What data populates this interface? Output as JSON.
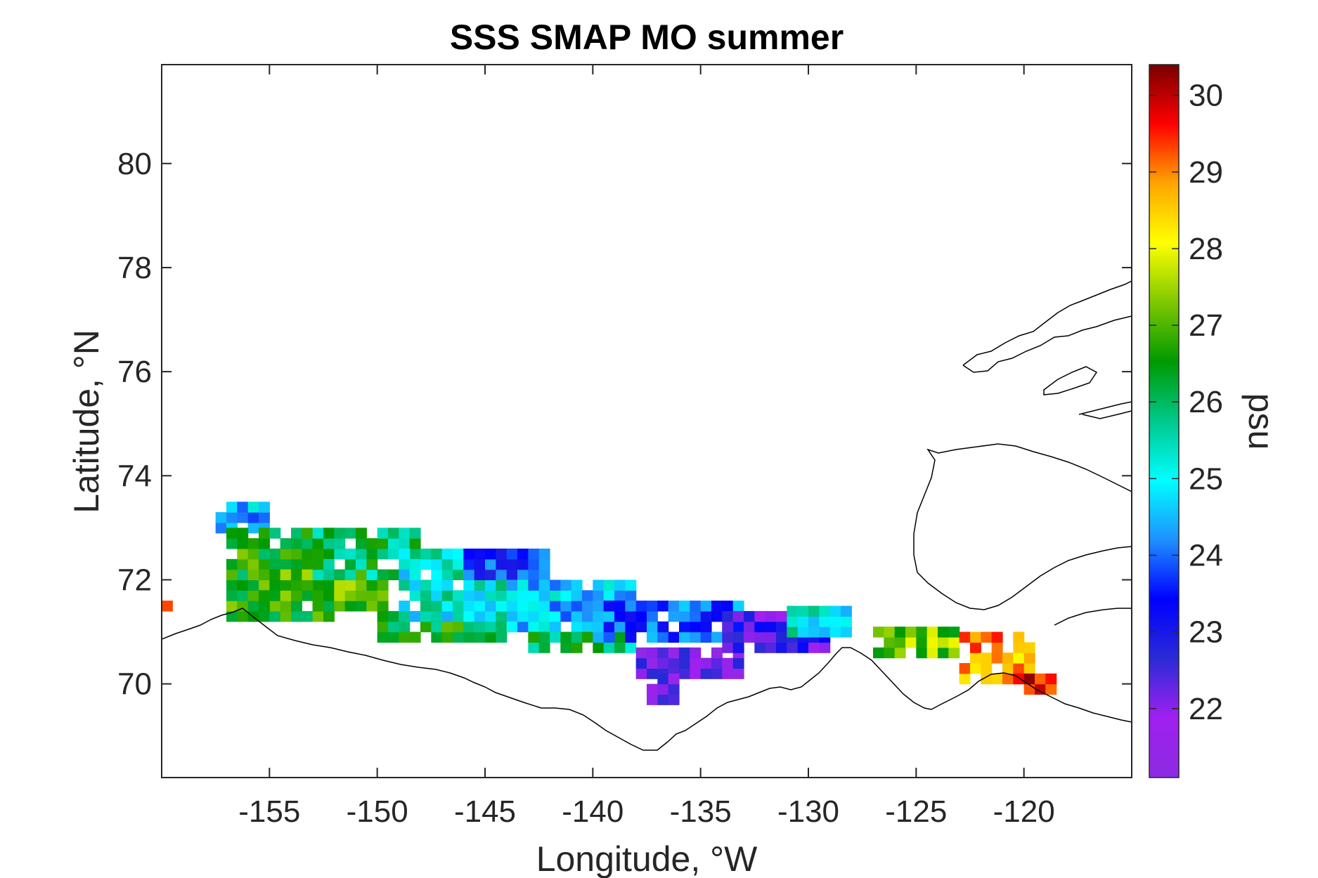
{
  "chart_data": {
    "type": "heatmap",
    "title": "SSS SMAP MO summer",
    "xlabel": "Longitude, °W",
    "ylabel": "Latitude, °N",
    "xlim": [
      -160,
      -115
    ],
    "ylim": [
      68.2,
      81.9
    ],
    "x_ticks": [
      -155,
      -150,
      -145,
      -140,
      -135,
      -130,
      -125,
      -120
    ],
    "y_ticks": [
      70,
      72,
      74,
      76,
      78,
      80
    ],
    "x_tick_labels": [
      "-155",
      "-150",
      "-145",
      "-140",
      "-135",
      "-130",
      "-125",
      "-120"
    ],
    "y_tick_labels": [
      "70",
      "72",
      "74",
      "76",
      "78",
      "80"
    ],
    "colorbar": {
      "label": "psu",
      "range": [
        21.1,
        30.4
      ],
      "ticks": [
        22,
        23,
        24,
        25,
        26,
        27,
        28,
        29,
        30
      ],
      "tick_labels": [
        "22",
        "23",
        "24",
        "25",
        "26",
        "27",
        "28",
        "29",
        "30"
      ],
      "colormap": [
        "#8b2be2",
        "#a020f0",
        "#2b2bd6",
        "#0000ff",
        "#1e90ff",
        "#00ffff",
        "#00c88c",
        "#009a00",
        "#7fc800",
        "#ffff00",
        "#ffa500",
        "#ff0000",
        "#780000"
      ]
    },
    "cell_size": [
      0.5,
      0.2
    ],
    "swaths": [
      {
        "lon": [
          -160,
          -159.5
        ],
        "lat": [
          71.4,
          71.6
        ],
        "psu": 29.2
      },
      {
        "lon": [
          -157.5,
          -155
        ],
        "lat": [
          72.9,
          73.5
        ],
        "psu": 24.5
      },
      {
        "lon": [
          -157,
          -152
        ],
        "lat": [
          71.2,
          72.9
        ],
        "psu": 26.6
      },
      {
        "lon": [
          -155.5,
          -149.5
        ],
        "lat": [
          71.4,
          72.2
        ],
        "psu": 26.9
      },
      {
        "lon": [
          -153,
          -148
        ],
        "lat": [
          72.0,
          72.9
        ],
        "psu": 26.0
      },
      {
        "lon": [
          -150,
          -144
        ],
        "lat": [
          70.8,
          71.4
        ],
        "psu": 26.4
      },
      {
        "lon": [
          -149,
          -143
        ],
        "lat": [
          71.2,
          72.6
        ],
        "psu": 25.2
      },
      {
        "lon": [
          -146,
          -142
        ],
        "lat": [
          72.0,
          72.6
        ],
        "psu": 23.6
      },
      {
        "lon": [
          -144,
          -138
        ],
        "lat": [
          71.0,
          72.0
        ],
        "psu": 24.6
      },
      {
        "lon": [
          -143,
          -138
        ],
        "lat": [
          70.6,
          71.0
        ],
        "psu": 26.0
      },
      {
        "lon": [
          -140,
          -133
        ],
        "lat": [
          70.8,
          71.6
        ],
        "psu": 23.9
      },
      {
        "lon": [
          -138,
          -133
        ],
        "lat": [
          70.1,
          70.7
        ],
        "psu": 22.0
      },
      {
        "lon": [
          -137.5,
          -136
        ],
        "lat": [
          69.6,
          70.2
        ],
        "psu": 22.0
      },
      {
        "lon": [
          -134,
          -129
        ],
        "lat": [
          70.6,
          71.4
        ],
        "psu": 22.6
      },
      {
        "lon": [
          -131,
          -128.2
        ],
        "lat": [
          70.9,
          71.4
        ],
        "psu": 25.2
      },
      {
        "lon": [
          -127,
          -123
        ],
        "lat": [
          70.5,
          71.0
        ],
        "psu": 27.2
      },
      {
        "lon": [
          -123,
          -119.5
        ],
        "lat": [
          70.0,
          71.0
        ],
        "psu": 28.8
      },
      {
        "lon": [
          -120.5,
          -118.5
        ],
        "lat": [
          69.8,
          70.2
        ],
        "psu": 29.6
      }
    ]
  }
}
